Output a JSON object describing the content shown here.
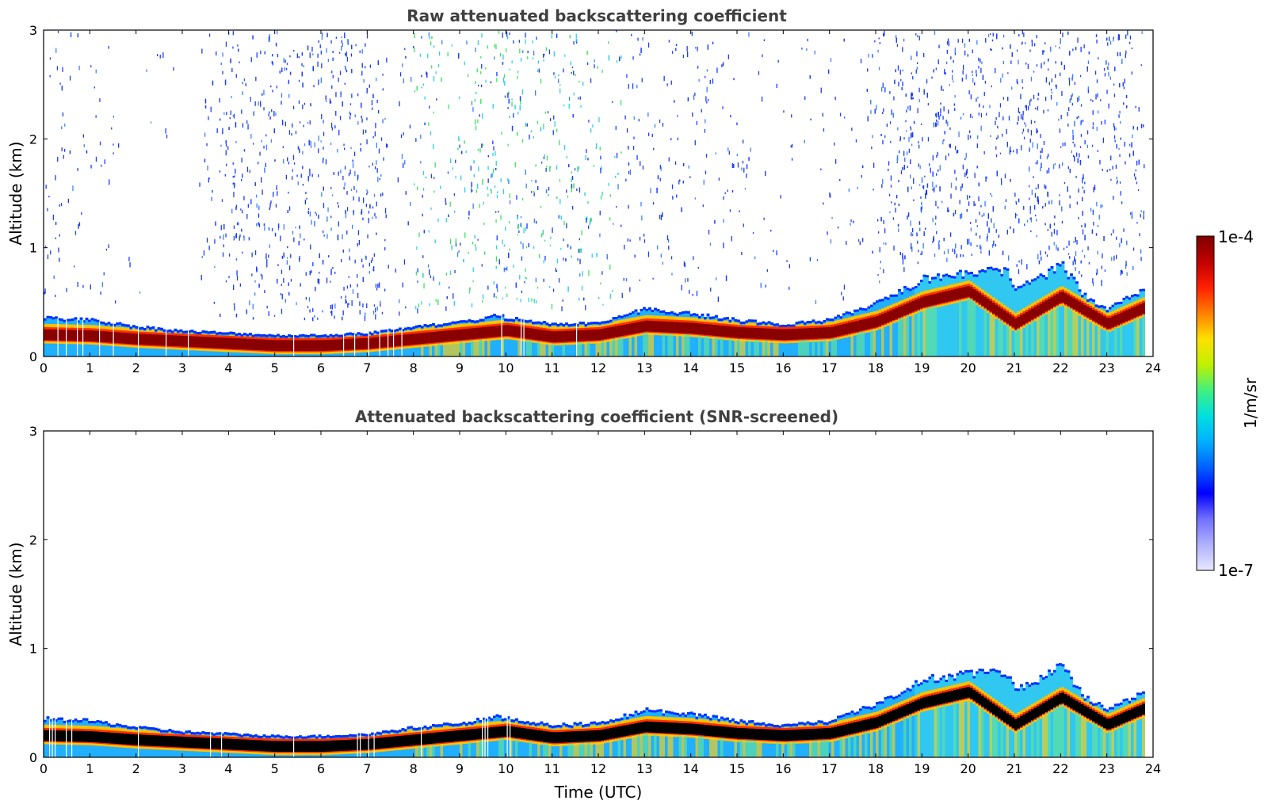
{
  "chart_data": [
    {
      "type": "heatmap",
      "title": "Raw attenuated backscattering coefficient",
      "xlabel": "",
      "ylabel": "Altitude (km)",
      "xlim": [
        0,
        24
      ],
      "ylim": [
        0,
        3
      ],
      "x_ticks": [
        "0",
        "1",
        "2",
        "3",
        "4",
        "5",
        "6",
        "7",
        "8",
        "9",
        "10",
        "11",
        "12",
        "13",
        "14",
        "15",
        "16",
        "17",
        "18",
        "19",
        "20",
        "21",
        "22",
        "23",
        "24"
      ],
      "y_ticks": [
        "0",
        "1",
        "2",
        "3"
      ],
      "layer_top_km": [
        [
          0,
          0.36
        ],
        [
          1,
          0.34
        ],
        [
          2,
          0.28
        ],
        [
          3,
          0.24
        ],
        [
          4,
          0.22
        ],
        [
          5,
          0.2
        ],
        [
          6,
          0.2
        ],
        [
          7,
          0.22
        ],
        [
          8,
          0.28
        ],
        [
          9,
          0.32
        ],
        [
          9.8,
          0.38
        ],
        [
          10,
          0.36
        ],
        [
          11,
          0.3
        ],
        [
          12,
          0.32
        ],
        [
          13,
          0.44
        ],
        [
          14,
          0.4
        ],
        [
          15,
          0.34
        ],
        [
          16,
          0.3
        ],
        [
          17,
          0.34
        ],
        [
          18,
          0.5
        ],
        [
          18.5,
          0.6
        ],
        [
          19,
          0.72
        ],
        [
          20,
          0.78
        ],
        [
          20.8,
          0.8
        ],
        [
          21,
          0.62
        ],
        [
          21.5,
          0.72
        ],
        [
          22,
          0.85
        ],
        [
          22.5,
          0.56
        ],
        [
          23,
          0.44
        ],
        [
          23.8,
          0.62
        ]
      ],
      "layer_core_km": [
        [
          0,
          0.2
        ],
        [
          1,
          0.19
        ],
        [
          2,
          0.16
        ],
        [
          3,
          0.14
        ],
        [
          4,
          0.12
        ],
        [
          5,
          0.1
        ],
        [
          6,
          0.1
        ],
        [
          7,
          0.12
        ],
        [
          8,
          0.16
        ],
        [
          9,
          0.2
        ],
        [
          10,
          0.24
        ],
        [
          11,
          0.18
        ],
        [
          12,
          0.2
        ],
        [
          13,
          0.28
        ],
        [
          14,
          0.26
        ],
        [
          15,
          0.22
        ],
        [
          16,
          0.2
        ],
        [
          17,
          0.22
        ],
        [
          18,
          0.32
        ],
        [
          19,
          0.5
        ],
        [
          20,
          0.6
        ],
        [
          21,
          0.3
        ],
        [
          22,
          0.55
        ],
        [
          23,
          0.3
        ],
        [
          23.8,
          0.45
        ]
      ],
      "upper_noise_intensity": [
        [
          0,
          0.3
        ],
        [
          3.2,
          0.0
        ],
        [
          4,
          0.9
        ],
        [
          7.4,
          0.9
        ],
        [
          7.5,
          0.0
        ],
        [
          8,
          0.5
        ],
        [
          10,
          0.8
        ],
        [
          12,
          0.5
        ],
        [
          14,
          0.4
        ],
        [
          16,
          0.1
        ],
        [
          17.6,
          0.2
        ],
        [
          18.5,
          0.8
        ],
        [
          23.8,
          0.8
        ]
      ]
    },
    {
      "type": "heatmap",
      "title": "Attenuated backscattering coefficient (SNR-screened)",
      "xlabel": "Time (UTC)",
      "ylabel": "Altitude (km)",
      "xlim": [
        0,
        24
      ],
      "ylim": [
        0,
        3
      ],
      "x_ticks": [
        "0",
        "1",
        "2",
        "3",
        "4",
        "5",
        "6",
        "7",
        "8",
        "9",
        "10",
        "11",
        "12",
        "13",
        "14",
        "15",
        "16",
        "17",
        "18",
        "19",
        "20",
        "21",
        "22",
        "23",
        "24"
      ],
      "y_ticks": [
        "0",
        "1",
        "2",
        "3"
      ],
      "saturated_color": "#000000"
    }
  ],
  "colorbar": {
    "label": "1/m/sr",
    "max_label": "1e-4",
    "min_label": "1e-7",
    "colors": [
      "#e8e8ff",
      "#b0b0ff",
      "#7070ff",
      "#0000ff",
      "#0060ff",
      "#00b0ff",
      "#00e0e0",
      "#40f080",
      "#c0f000",
      "#ffe000",
      "#ff8000",
      "#ff2000",
      "#c00000",
      "#800000"
    ]
  },
  "colors": {
    "title": "#404040",
    "noise_blue": "#1a3cff",
    "noise_cyan": "#30d0e0",
    "noise_green": "#40e060"
  }
}
